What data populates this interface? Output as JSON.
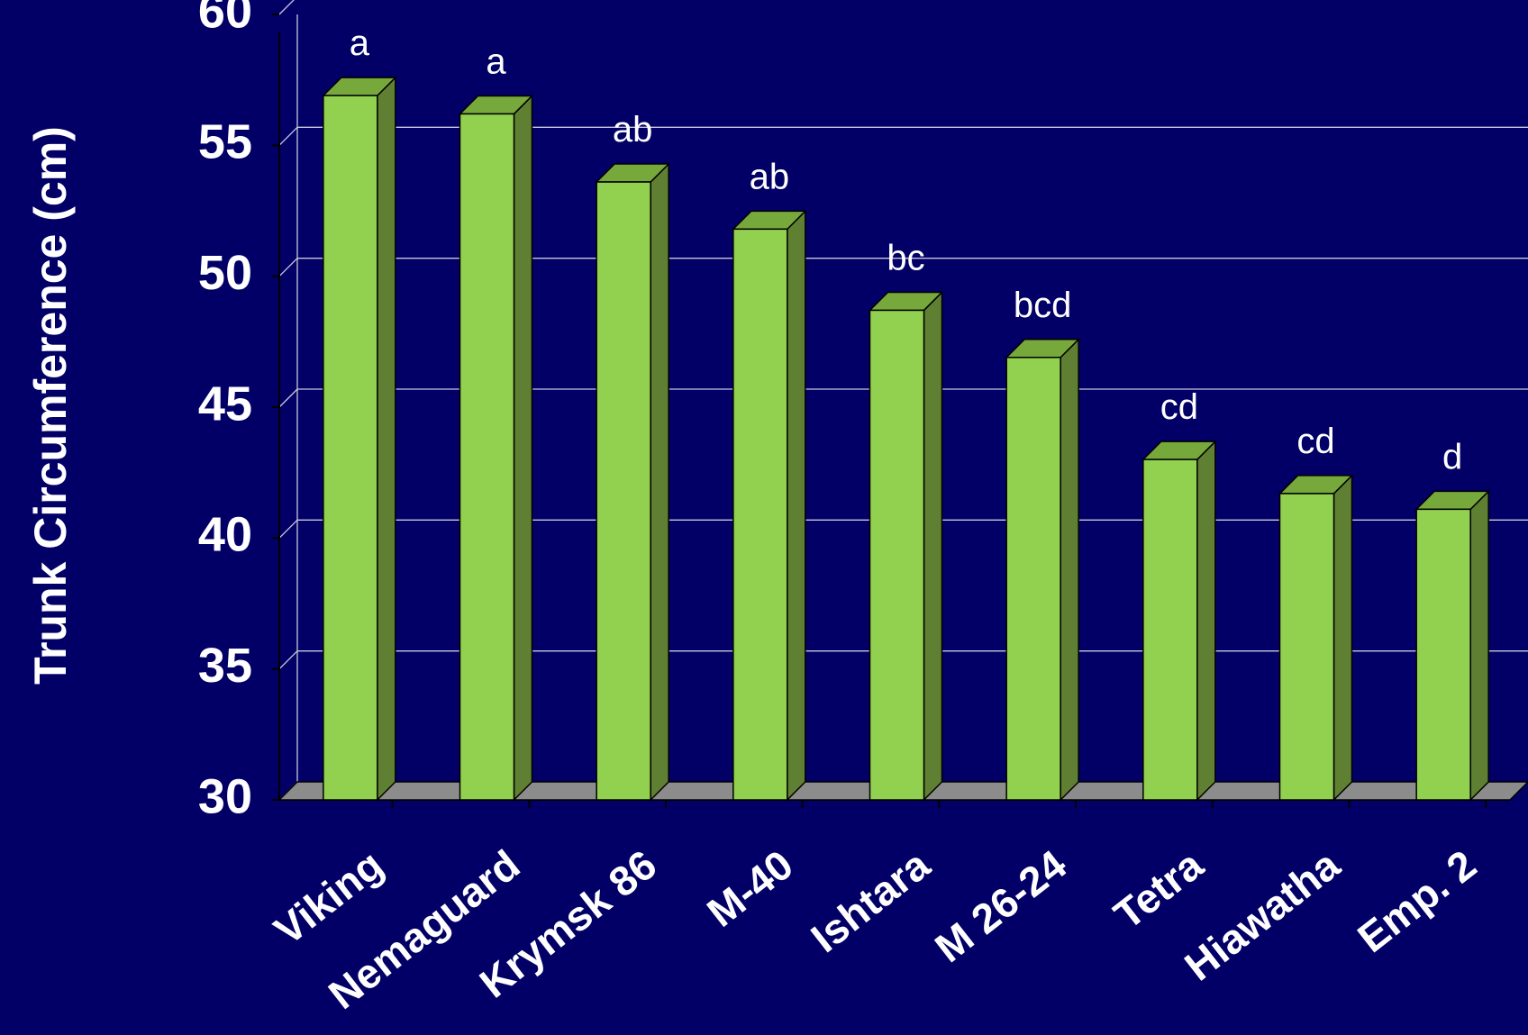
{
  "chart_data": {
    "type": "bar",
    "title": "",
    "xlabel": "",
    "ylabel": "Trunk Circumference (cm)",
    "ylim": [
      30,
      60
    ],
    "yticks": [
      30,
      35,
      40,
      45,
      50,
      55,
      60
    ],
    "grid": true,
    "categories": [
      "Viking",
      "Nemaguard",
      "Krymsk 86",
      "M-40",
      "Ishtara",
      "M 26-24",
      "Tetra",
      "Hiawatha",
      "Emp. 2"
    ],
    "values": [
      56.9,
      56.2,
      53.6,
      51.8,
      48.7,
      46.9,
      43.0,
      41.7,
      41.1
    ],
    "data_labels": [
      "a",
      "a",
      "ab",
      "ab",
      "bc",
      "bcd",
      "cd",
      "cd",
      "d"
    ],
    "colors": {
      "background": "#020066",
      "bar_front": "#92d050",
      "bar_side": "#5f7f32",
      "bar_top": "#77a83c",
      "floor": "#8c8c8c",
      "gridline": "#c8c8dc",
      "text": "#ffffff"
    }
  }
}
